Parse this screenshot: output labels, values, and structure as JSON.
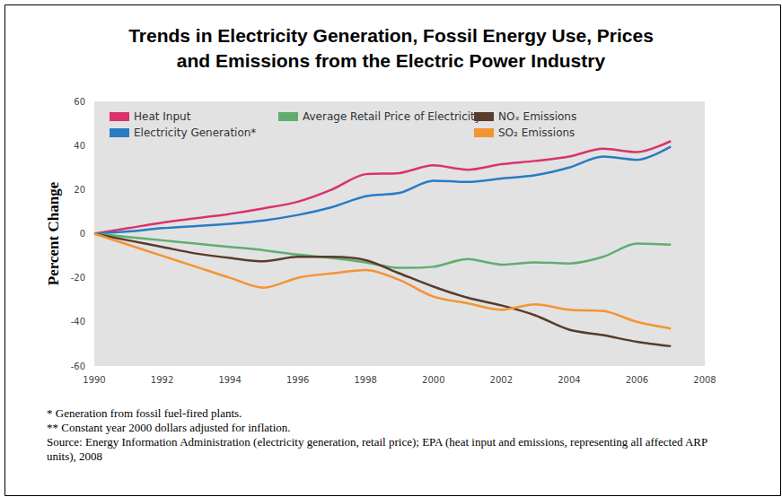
{
  "chart_data": {
    "type": "line",
    "title": "Trends in Electricity Generation, Fossil Energy Use, Prices\nand Emissions from the Electric Power Industry",
    "y_label": "Percent Change",
    "x": [
      1990,
      1991,
      1992,
      1993,
      1994,
      1995,
      1996,
      1997,
      1998,
      1999,
      2000,
      2001,
      2002,
      2003,
      2004,
      2005,
      2006,
      2007
    ],
    "series": [
      {
        "name": "Heat Input",
        "color": "#d9336b",
        "values": [
          0,
          2.5,
          5,
          7,
          9,
          11.5,
          14.5,
          20,
          27,
          27.5,
          31,
          29,
          31.5,
          33,
          35,
          38.5,
          37,
          42
        ]
      },
      {
        "name": "Electricity Generation*",
        "color": "#2a7bc4",
        "values": [
          0,
          1,
          2.5,
          3.5,
          4.5,
          6,
          8.5,
          12,
          17,
          18.5,
          24,
          23.5,
          25,
          26.5,
          30,
          35,
          33.5,
          39.5
        ]
      },
      {
        "name": "Average Retail Price of Electricity**",
        "color": "#5fae6e",
        "values": [
          0,
          -1.5,
          -3,
          -4.5,
          -6,
          -7.5,
          -9.5,
          -11,
          -13,
          -15.5,
          -15,
          -11.5,
          -14,
          -13,
          -13.5,
          -10.5,
          -4.5,
          -5
        ]
      },
      {
        "name": "NOₓ Emissions",
        "color": "#5a3b2c",
        "values": [
          0,
          -3,
          -6,
          -9,
          -11,
          -12.5,
          -10.5,
          -10.5,
          -12,
          -18,
          -24,
          -29,
          -32.5,
          -37,
          -43.5,
          -46,
          -49,
          -51
        ]
      },
      {
        "name": "SO₂ Emissions",
        "color": "#f39433",
        "values": [
          0,
          -5,
          -10,
          -15,
          -20,
          -24.5,
          -20,
          -18,
          -16.5,
          -21,
          -28.5,
          -31.5,
          -34.5,
          -32,
          -34.5,
          -35,
          -40,
          -43
        ]
      }
    ],
    "xlim": [
      1990,
      2008
    ],
    "xticks": [
      1990,
      1992,
      1994,
      1996,
      1998,
      2000,
      2002,
      2004,
      2006,
      2008
    ],
    "ylim": [
      -60,
      60
    ],
    "yticks": [
      -60,
      -40,
      -20,
      0,
      20,
      40,
      60
    ],
    "grid": false,
    "legend": "top-left",
    "annotations": [
      "* Generation from fossil fuel-fired plants.",
      "** Constant year 2000 dollars adjusted for inflation.",
      "Source: Energy Information Administration (electricity generation, retail price); EPA (heat input and emissions, representing all affected ARP units), 2008"
    ]
  }
}
